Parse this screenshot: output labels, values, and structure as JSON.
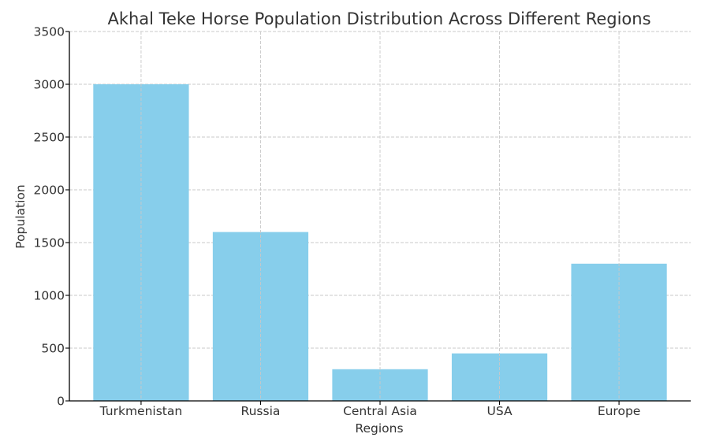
{
  "chart_data": {
    "type": "bar",
    "title": "Akhal Teke Horse Population Distribution Across Different Regions",
    "xlabel": "Regions",
    "ylabel": "Population",
    "categories": [
      "Turkmenistan",
      "Russia",
      "Central Asia",
      "USA",
      "Europe"
    ],
    "values": [
      3000,
      1600,
      300,
      450,
      1300
    ],
    "ylim": [
      0,
      3500
    ],
    "yticks": [
      0,
      500,
      1000,
      1500,
      2000,
      2500,
      3000,
      3500
    ],
    "grid": true,
    "bar_color": "#87CEEB"
  }
}
